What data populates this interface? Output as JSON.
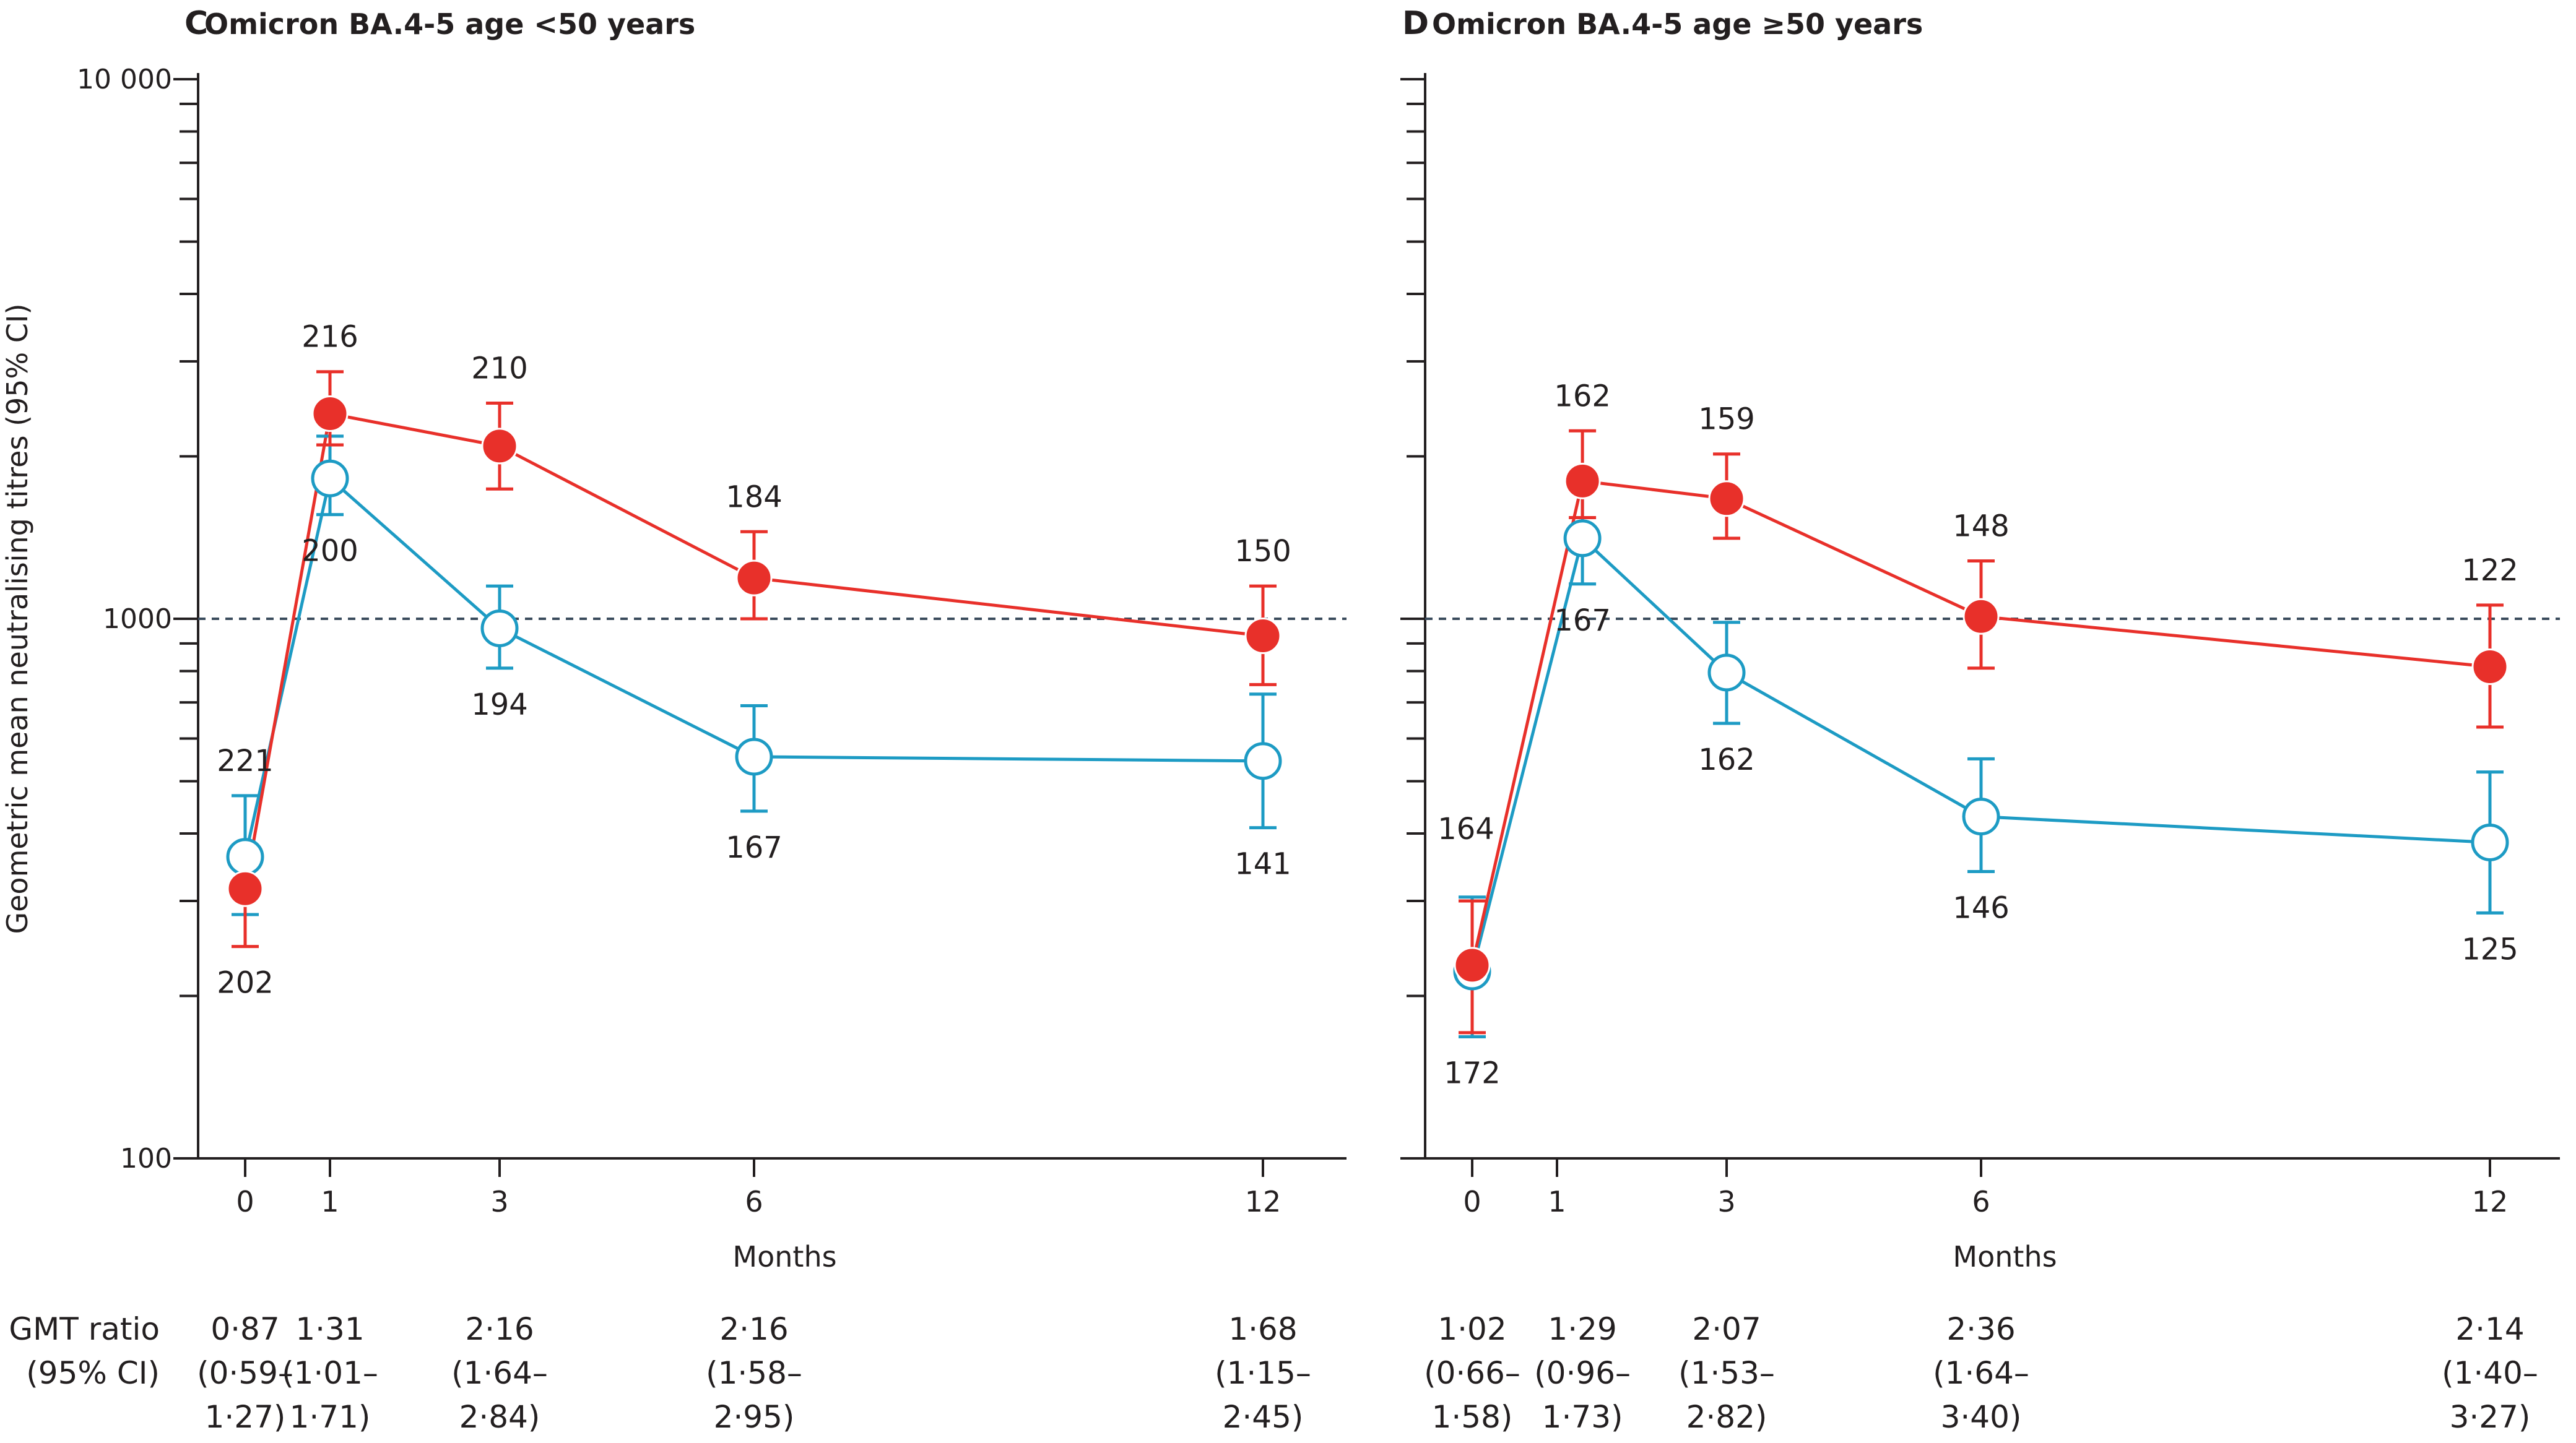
{
  "y_axis_label": "Geometric mean neutralising titres (95% CI)",
  "gmt": {
    "row_label_1": "GMT ratio",
    "row_label_2": "(95% CI)"
  },
  "colors": {
    "red_series": "#e8302a",
    "blue_series": "#1d9bc4",
    "reference_line": "#3a4b5c",
    "axis": "#231f20"
  },
  "chart_data": [
    {
      "type": "line",
      "panel_letter": "C",
      "title": "Omicron BA.4-5 age <50 years",
      "xlabel": "Months",
      "ylabel": "Geometric mean neutralising titres (95% CI)",
      "y_scale": "log",
      "ylim": [
        100,
        10000
      ],
      "y_ticks": [
        100,
        1000,
        10000
      ],
      "y_tick_labels": [
        "100",
        "1000",
        "10 000"
      ],
      "x_ticks": [
        0,
        1,
        3,
        6,
        12
      ],
      "x_tick_labels": [
        "0",
        "1",
        "3",
        "6",
        "12"
      ],
      "reference_line": 1000,
      "series": [
        {
          "color": "#e8302a",
          "marker": "filled",
          "points": [
            {
              "x": 0,
              "y": 316,
              "lo": 247,
              "hi": 367,
              "n": "202",
              "label_pos": "below"
            },
            {
              "x": 1,
              "y": 2400,
              "lo": 2100,
              "hi": 2870,
              "n": "216",
              "label_pos": "above"
            },
            {
              "x": 3,
              "y": 2090,
              "lo": 1740,
              "hi": 2510,
              "n": "210",
              "label_pos": "above"
            },
            {
              "x": 6,
              "y": 1190,
              "lo": 1000,
              "hi": 1450,
              "n": "184",
              "label_pos": "above"
            },
            {
              "x": 12,
              "y": 930,
              "lo": 755,
              "hi": 1150,
              "n": "150",
              "label_pos": "above"
            }
          ]
        },
        {
          "color": "#1d9bc4",
          "marker": "open",
          "points": [
            {
              "x": 0,
              "y": 362,
              "lo": 283,
              "hi": 470,
              "n": "221",
              "label_pos": "above"
            },
            {
              "x": 1,
              "y": 1820,
              "lo": 1560,
              "hi": 2180,
              "n": "200",
              "label_pos": "below"
            },
            {
              "x": 3,
              "y": 960,
              "lo": 810,
              "hi": 1150,
              "n": "194",
              "label_pos": "below"
            },
            {
              "x": 6,
              "y": 555,
              "lo": 440,
              "hi": 690,
              "n": "167",
              "label_pos": "below"
            },
            {
              "x": 12,
              "y": 545,
              "lo": 410,
              "hi": 725,
              "n": "141",
              "label_pos": "below"
            }
          ]
        }
      ],
      "gmt_ratio": [
        {
          "x": 0,
          "value": "0·87",
          "ci_line1": "(0·59–",
          "ci_line2": "1·27)"
        },
        {
          "x": 1,
          "value": "1·31",
          "ci_line1": "(1·01–",
          "ci_line2": "1·71)"
        },
        {
          "x": 3,
          "value": "2·16",
          "ci_line1": "(1·64–",
          "ci_line2": "2·84)"
        },
        {
          "x": 6,
          "value": "2·16",
          "ci_line1": "(1·58–",
          "ci_line2": "2·95)"
        },
        {
          "x": 12,
          "value": "1·68",
          "ci_line1": "(1·15–",
          "ci_line2": "2·45)"
        }
      ]
    },
    {
      "type": "line",
      "panel_letter": "D",
      "title": "Omicron BA.4-5 age ≥50 years",
      "xlabel": "Months",
      "ylabel": "",
      "y_scale": "log",
      "ylim": [
        100,
        10000
      ],
      "y_ticks": [
        100,
        1000,
        10000
      ],
      "y_tick_labels": [
        "",
        "",
        ""
      ],
      "x_ticks": [
        0,
        1,
        3,
        6,
        12
      ],
      "x_tick_labels": [
        "0",
        "1",
        "3",
        "6",
        "12"
      ],
      "reference_line": 1000,
      "series": [
        {
          "color": "#e8302a",
          "marker": "filled",
          "points": [
            {
              "x": 0,
              "y": 228,
              "lo": 171,
              "hi": 300,
              "n": "164",
              "label_pos": "left"
            },
            {
              "x": 1.3,
              "y": 1800,
              "lo": 1540,
              "hi": 2230,
              "n": "162",
              "label_pos": "above"
            },
            {
              "x": 3,
              "y": 1670,
              "lo": 1410,
              "hi": 2020,
              "n": "159",
              "label_pos": "above"
            },
            {
              "x": 6,
              "y": 1010,
              "lo": 810,
              "hi": 1280,
              "n": "148",
              "label_pos": "above"
            },
            {
              "x": 12,
              "y": 815,
              "lo": 630,
              "hi": 1060,
              "n": "122",
              "label_pos": "above"
            }
          ]
        },
        {
          "color": "#1d9bc4",
          "marker": "open",
          "points": [
            {
              "x": 0,
              "y": 222,
              "lo": 168,
              "hi": 305,
              "n": "172",
              "label_pos": "below"
            },
            {
              "x": 1.3,
              "y": 1410,
              "lo": 1160,
              "hi": 1720,
              "n": "167",
              "label_pos": "below"
            },
            {
              "x": 3,
              "y": 795,
              "lo": 640,
              "hi": 985,
              "n": "162",
              "label_pos": "below"
            },
            {
              "x": 6,
              "y": 430,
              "lo": 340,
              "hi": 550,
              "n": "146",
              "label_pos": "below"
            },
            {
              "x": 12,
              "y": 385,
              "lo": 285,
              "hi": 520,
              "n": "125",
              "label_pos": "below"
            }
          ]
        }
      ],
      "gmt_ratio": [
        {
          "x": 0,
          "value": "1·02",
          "ci_line1": "(0·66–",
          "ci_line2": "1·58)"
        },
        {
          "x": 1.3,
          "value": "1·29",
          "ci_line1": "(0·96–",
          "ci_line2": "1·73)"
        },
        {
          "x": 3,
          "value": "2·07",
          "ci_line1": "(1·53–",
          "ci_line2": "2·82)"
        },
        {
          "x": 6,
          "value": "2·36",
          "ci_line1": "(1·64–",
          "ci_line2": "3·40)"
        },
        {
          "x": 12,
          "value": "2·14",
          "ci_line1": "(1·40–",
          "ci_line2": "3·27)"
        }
      ]
    }
  ]
}
